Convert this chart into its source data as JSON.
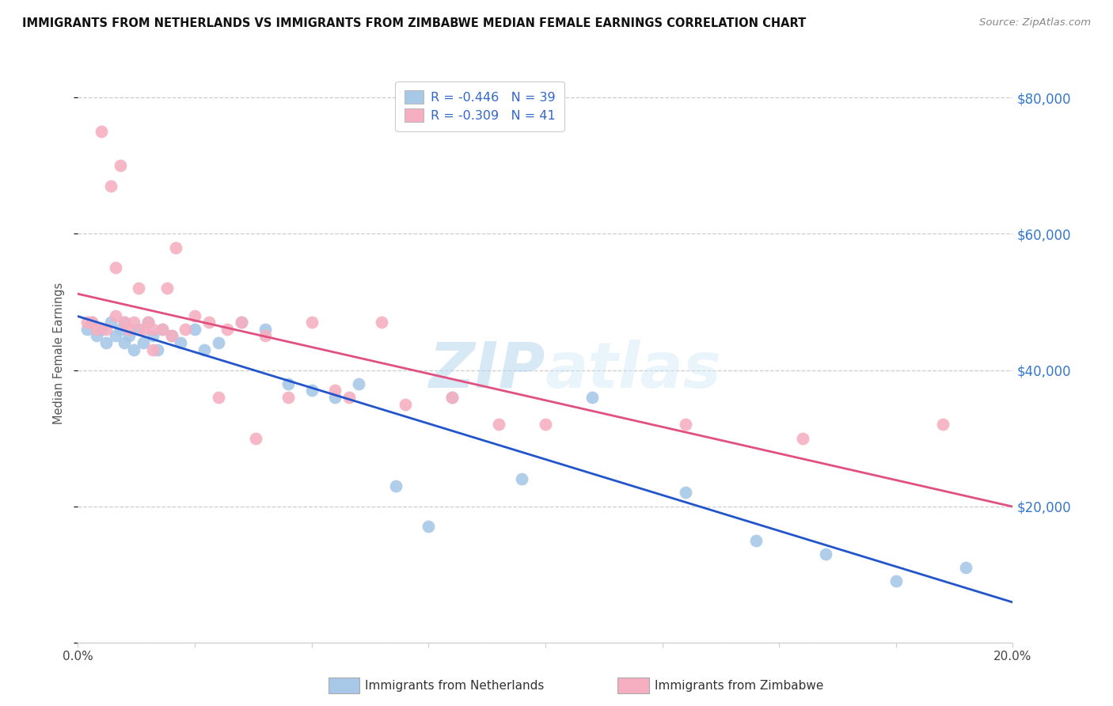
{
  "title": "IMMIGRANTS FROM NETHERLANDS VS IMMIGRANTS FROM ZIMBABWE MEDIAN FEMALE EARNINGS CORRELATION CHART",
  "source": "Source: ZipAtlas.com",
  "ylabel": "Median Female Earnings",
  "xlim": [
    0,
    0.2
  ],
  "ylim": [
    0,
    85000
  ],
  "yticks": [
    0,
    20000,
    40000,
    60000,
    80000
  ],
  "ytick_labels": [
    "",
    "$20,000",
    "$40,000",
    "$60,000",
    "$80,000"
  ],
  "xticks": [
    0.0,
    0.025,
    0.05,
    0.075,
    0.1,
    0.125,
    0.15,
    0.175,
    0.2
  ],
  "xtick_labels_show": [
    "0.0%",
    "",
    "",
    "",
    "",
    "",
    "",
    "",
    "20.0%"
  ],
  "legend_netherlands": "R = -0.446   N = 39",
  "legend_zimbabwe": "R = -0.309   N = 41",
  "netherlands_color": "#a8c8e8",
  "zimbabwe_color": "#f5afc0",
  "netherlands_line_color": "#2255cc",
  "zimbabwe_line_color": "#e05080",
  "background_color": "#ffffff",
  "watermark": "ZIPatlas",
  "netherlands_x": [
    0.002,
    0.003,
    0.004,
    0.005,
    0.006,
    0.007,
    0.008,
    0.009,
    0.01,
    0.01,
    0.011,
    0.012,
    0.013,
    0.014,
    0.015,
    0.016,
    0.017,
    0.018,
    0.02,
    0.022,
    0.025,
    0.027,
    0.03,
    0.035,
    0.04,
    0.045,
    0.05,
    0.055,
    0.06,
    0.068,
    0.075,
    0.08,
    0.095,
    0.11,
    0.13,
    0.145,
    0.16,
    0.175,
    0.19
  ],
  "netherlands_y": [
    46000,
    47000,
    45000,
    46000,
    44000,
    47000,
    45000,
    46000,
    44000,
    47000,
    45000,
    43000,
    46000,
    44000,
    47000,
    45000,
    43000,
    46000,
    45000,
    44000,
    46000,
    43000,
    44000,
    47000,
    46000,
    38000,
    37000,
    36000,
    38000,
    23000,
    17000,
    36000,
    24000,
    36000,
    22000,
    15000,
    13000,
    9000,
    11000
  ],
  "zimbabwe_x": [
    0.002,
    0.003,
    0.004,
    0.005,
    0.006,
    0.007,
    0.008,
    0.008,
    0.009,
    0.01,
    0.011,
    0.012,
    0.013,
    0.014,
    0.015,
    0.016,
    0.016,
    0.018,
    0.019,
    0.02,
    0.021,
    0.023,
    0.025,
    0.028,
    0.03,
    0.032,
    0.035,
    0.038,
    0.04,
    0.045,
    0.05,
    0.055,
    0.058,
    0.065,
    0.07,
    0.08,
    0.09,
    0.1,
    0.13,
    0.155,
    0.185
  ],
  "zimbabwe_y": [
    47000,
    47000,
    46000,
    75000,
    46000,
    67000,
    48000,
    55000,
    70000,
    47000,
    46000,
    47000,
    52000,
    46000,
    47000,
    46000,
    43000,
    46000,
    52000,
    45000,
    58000,
    46000,
    48000,
    47000,
    36000,
    46000,
    47000,
    30000,
    45000,
    36000,
    47000,
    37000,
    36000,
    47000,
    35000,
    36000,
    32000,
    32000,
    32000,
    30000,
    32000
  ]
}
